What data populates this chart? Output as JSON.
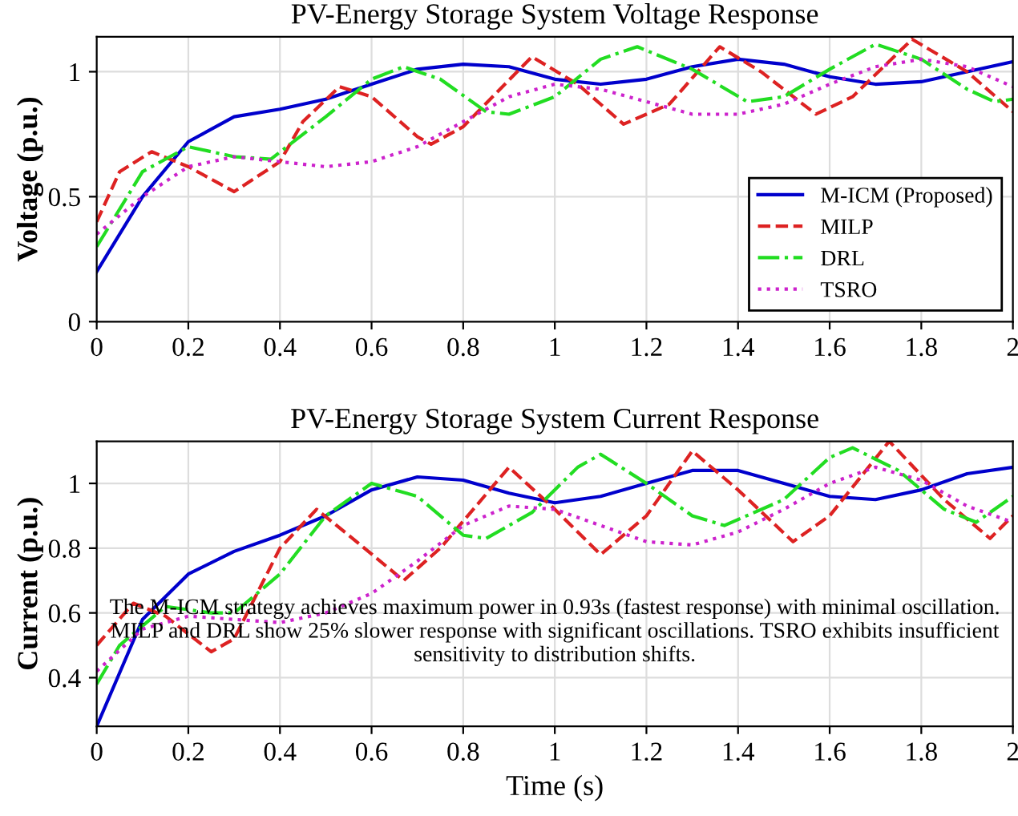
{
  "chart_data": [
    {
      "type": "line",
      "title": "PV-Energy Storage System Voltage Response",
      "ylabel": "Voltage (p.u.)",
      "xlim": [
        0,
        2
      ],
      "xticks": [
        0,
        0.2,
        0.4,
        0.6,
        0.8,
        1,
        1.2,
        1.4,
        1.6,
        1.8,
        2
      ],
      "ylim": [
        0,
        1.14
      ],
      "yticks": [
        0,
        0.5,
        1
      ],
      "grid": true,
      "legend": "bottom right",
      "series": [
        {
          "name": "M-ICM (Proposed)",
          "color": "#0000cc",
          "line_style": "solid",
          "x": [
            0,
            0.1,
            0.2,
            0.3,
            0.4,
            0.5,
            0.6,
            0.7,
            0.8,
            0.9,
            1.0,
            1.1,
            1.2,
            1.3,
            1.4,
            1.5,
            1.6,
            1.7,
            1.8,
            1.9,
            2.0
          ],
          "values": [
            0.2,
            0.5,
            0.72,
            0.82,
            0.85,
            0.89,
            0.95,
            1.01,
            1.03,
            1.02,
            0.97,
            0.95,
            0.97,
            1.02,
            1.05,
            1.03,
            0.98,
            0.95,
            0.96,
            1.0,
            1.04
          ]
        },
        {
          "name": "MILP",
          "color": "#dd2222",
          "line_style": "dashed",
          "x": [
            0,
            0.05,
            0.12,
            0.2,
            0.3,
            0.4,
            0.45,
            0.53,
            0.6,
            0.7,
            0.73,
            0.8,
            0.95,
            1.05,
            1.15,
            1.25,
            1.36,
            1.45,
            1.57,
            1.65,
            1.78,
            1.9,
            2.0
          ],
          "values": [
            0.4,
            0.6,
            0.68,
            0.62,
            0.52,
            0.64,
            0.8,
            0.94,
            0.9,
            0.74,
            0.71,
            0.78,
            1.06,
            0.95,
            0.79,
            0.87,
            1.1,
            1.0,
            0.83,
            0.9,
            1.13,
            1.0,
            0.84
          ]
        },
        {
          "name": "DRL",
          "color": "#22dd22",
          "line_style": "dashdot",
          "x": [
            0,
            0.1,
            0.2,
            0.3,
            0.38,
            0.5,
            0.6,
            0.67,
            0.75,
            0.85,
            0.9,
            1.0,
            1.1,
            1.18,
            1.3,
            1.42,
            1.5,
            1.6,
            1.7,
            1.8,
            1.9,
            1.96,
            2.0
          ],
          "values": [
            0.3,
            0.6,
            0.7,
            0.66,
            0.65,
            0.82,
            0.97,
            1.02,
            0.97,
            0.84,
            0.83,
            0.9,
            1.05,
            1.1,
            1.01,
            0.88,
            0.9,
            1.01,
            1.11,
            1.05,
            0.93,
            0.88,
            0.89
          ]
        },
        {
          "name": "TSRO",
          "color": "#cc22cc",
          "line_style": "dotted",
          "x": [
            0,
            0.1,
            0.2,
            0.3,
            0.4,
            0.5,
            0.6,
            0.7,
            0.8,
            0.9,
            1.0,
            1.1,
            1.2,
            1.3,
            1.4,
            1.5,
            1.6,
            1.7,
            1.8,
            1.9,
            2.0
          ],
          "values": [
            0.35,
            0.5,
            0.62,
            0.66,
            0.64,
            0.62,
            0.64,
            0.7,
            0.8,
            0.9,
            0.95,
            0.93,
            0.88,
            0.83,
            0.83,
            0.87,
            0.95,
            1.02,
            1.05,
            1.02,
            0.94
          ]
        }
      ]
    },
    {
      "type": "line",
      "title": "PV-Energy Storage System Current Response",
      "xlabel": "Time (s)",
      "ylabel": "Current (p.u.)",
      "xlim": [
        0,
        2
      ],
      "xticks": [
        0,
        0.2,
        0.4,
        0.6,
        0.8,
        1,
        1.2,
        1.4,
        1.6,
        1.8,
        2
      ],
      "ylim": [
        0.25,
        1.13
      ],
      "yticks": [
        0.4,
        0.6,
        0.8,
        1
      ],
      "grid": true,
      "annotations": [
        "The M-ICM strategy achieves maximum power in 0.93s (fastest response) with minimal oscillation.\nMILP and DRL show 25% slower response with significant oscillations. TSRO exhibits insufficient\nsensitivity to distribution shifts."
      ],
      "series": [
        {
          "color": "#0000cc",
          "line_style": "solid",
          "x": [
            0,
            0.1,
            0.2,
            0.3,
            0.4,
            0.5,
            0.6,
            0.7,
            0.8,
            0.9,
            1.0,
            1.1,
            1.2,
            1.3,
            1.4,
            1.5,
            1.6,
            1.7,
            1.8,
            1.9,
            2.0
          ],
          "values": [
            0.25,
            0.58,
            0.72,
            0.79,
            0.84,
            0.9,
            0.98,
            1.02,
            1.01,
            0.97,
            0.94,
            0.96,
            1.0,
            1.04,
            1.04,
            1.0,
            0.96,
            0.95,
            0.98,
            1.03,
            1.05
          ]
        },
        {
          "color": "#dd2222",
          "line_style": "dashed",
          "x": [
            0,
            0.08,
            0.15,
            0.25,
            0.3,
            0.4,
            0.48,
            0.55,
            0.67,
            0.75,
            0.9,
            1.0,
            1.1,
            1.2,
            1.3,
            1.4,
            1.52,
            1.6,
            1.73,
            1.85,
            1.95,
            2.0
          ],
          "values": [
            0.5,
            0.63,
            0.59,
            0.48,
            0.52,
            0.8,
            0.92,
            0.84,
            0.7,
            0.8,
            1.05,
            0.92,
            0.78,
            0.9,
            1.1,
            0.98,
            0.82,
            0.9,
            1.13,
            0.95,
            0.83,
            0.9
          ]
        },
        {
          "color": "#22dd22",
          "line_style": "dashdot",
          "x": [
            0,
            0.05,
            0.15,
            0.25,
            0.3,
            0.4,
            0.5,
            0.6,
            0.7,
            0.8,
            0.85,
            0.95,
            1.05,
            1.1,
            1.2,
            1.3,
            1.37,
            1.5,
            1.6,
            1.65,
            1.75,
            1.85,
            1.92,
            2.0
          ],
          "values": [
            0.38,
            0.5,
            0.62,
            0.6,
            0.6,
            0.72,
            0.9,
            1.0,
            0.96,
            0.84,
            0.83,
            0.91,
            1.05,
            1.09,
            1.0,
            0.9,
            0.87,
            0.95,
            1.08,
            1.11,
            1.04,
            0.92,
            0.88,
            0.96
          ]
        },
        {
          "color": "#cc22cc",
          "line_style": "dotted",
          "x": [
            0,
            0.1,
            0.2,
            0.3,
            0.4,
            0.5,
            0.6,
            0.7,
            0.8,
            0.9,
            1.0,
            1.1,
            1.2,
            1.3,
            1.4,
            1.5,
            1.6,
            1.7,
            1.8,
            1.9,
            2.0
          ],
          "values": [
            0.42,
            0.55,
            0.59,
            0.58,
            0.57,
            0.6,
            0.66,
            0.76,
            0.87,
            0.93,
            0.92,
            0.87,
            0.82,
            0.81,
            0.85,
            0.92,
            1.0,
            1.05,
            1.01,
            0.93,
            0.88
          ]
        }
      ]
    }
  ]
}
